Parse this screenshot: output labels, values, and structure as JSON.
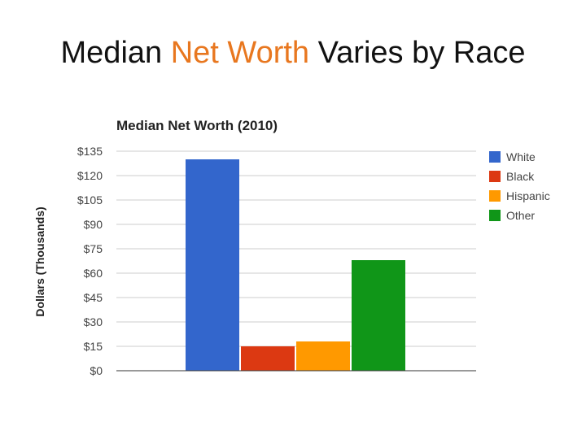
{
  "slide": {
    "title_before": "Median ",
    "title_accent": "Net Worth",
    "title_after": " Varies by Race"
  },
  "colors": {
    "title_accent": "#e8771f"
  },
  "chart_data": {
    "type": "bar",
    "title": "Median Net Worth (2010)",
    "ylabel": "Dollars (Thousands)",
    "xlabel": "",
    "ylim": [
      0,
      135
    ],
    "yticks": [
      0,
      15,
      30,
      45,
      60,
      75,
      90,
      105,
      120,
      135
    ],
    "ytick_labels": [
      "$0",
      "$15",
      "$30",
      "$45",
      "$60",
      "$75",
      "$90",
      "$105",
      "$120",
      "$135"
    ],
    "grid": true,
    "legend_position": "right",
    "series": [
      {
        "name": "White",
        "values": [
          130
        ],
        "color": "#3366cc"
      },
      {
        "name": "Black",
        "values": [
          15
        ],
        "color": "#dc3912"
      },
      {
        "name": "Hispanic",
        "values": [
          18
        ],
        "color": "#ff9900"
      },
      {
        "name": "Other",
        "values": [
          68
        ],
        "color": "#109618"
      }
    ]
  }
}
